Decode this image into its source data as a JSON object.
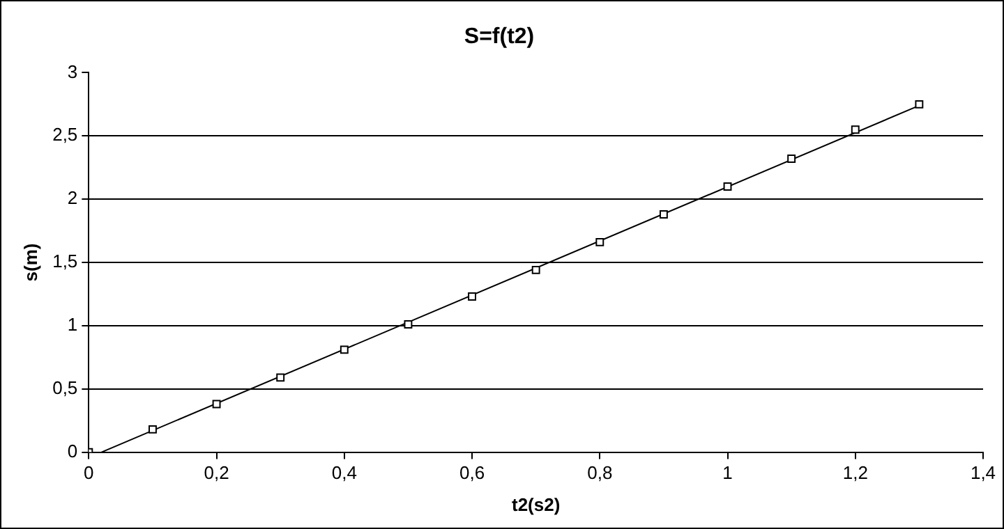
{
  "chart_data": {
    "type": "scatter",
    "title": "S=f(t2)",
    "xlabel": "t2(s2)",
    "ylabel": "s(m)",
    "series": [
      {
        "type": "scatter",
        "color": "#000000",
        "marker": "square",
        "x": [
          0,
          0.1,
          0.2,
          0.3,
          0.4,
          0.5,
          0.6,
          0.7,
          0.8,
          0.9,
          1.0,
          1.1,
          1.2,
          1.3
        ],
        "values": [
          0,
          0.18,
          0.38,
          0.59,
          0.81,
          1.01,
          1.23,
          1.44,
          1.66,
          1.88,
          2.1,
          2.32,
          2.55,
          2.75
        ]
      },
      {
        "type": "line",
        "color": "#000000",
        "marker": "none",
        "x": [
          0.02,
          1.3
        ],
        "values": [
          0,
          2.74
        ]
      }
    ],
    "xlim": [
      0,
      1.4
    ],
    "xticks": [
      0,
      {
        "value": 0.2,
        "label": "0,2"
      },
      {
        "value": 0.4,
        "label": "0,4"
      },
      {
        "value": 0.6,
        "label": "0,6"
      },
      {
        "value": 0.8,
        "label": "0,8"
      },
      1,
      {
        "value": 1.2,
        "label": "1,2"
      },
      {
        "value": 1.4,
        "label": "1,4"
      }
    ],
    "ylim": [
      0,
      3
    ],
    "yticks": [
      0,
      {
        "value": 0.5,
        "label": "0,5"
      },
      1,
      {
        "value": 1.5,
        "label": "1,5"
      },
      2,
      {
        "value": 2.5,
        "label": "2,5"
      },
      3
    ],
    "grid": "y",
    "legend": false
  }
}
